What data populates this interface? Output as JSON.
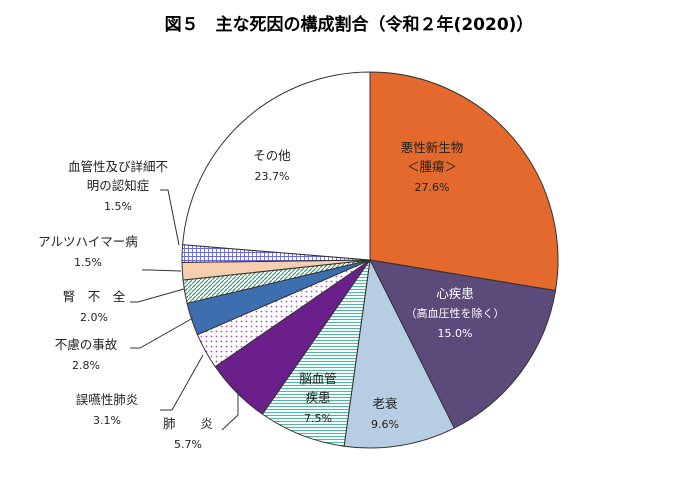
{
  "chart_data": {
    "type": "pie",
    "title": "図５　主な死因の構成割合（令和２年(2020)）",
    "unit": "%",
    "slices": [
      {
        "name": "悪性新生物<腫瘍>",
        "label_lines": [
          "悪性新生物",
          "＜腫瘍＞"
        ],
        "value": 27.6,
        "value_label": "27.6%",
        "color": "#e3692c",
        "pattern": "solid"
      },
      {
        "name": "心疾患（高血圧性を除く）",
        "label_lines": [
          "心疾患",
          "（高血圧性を除く）"
        ],
        "value": 15.0,
        "value_label": "15.0%",
        "color": "#5b4a7a",
        "pattern": "solid"
      },
      {
        "name": "老衰",
        "label_lines": [
          "老衰"
        ],
        "value": 9.6,
        "value_label": "9.6%",
        "color": "#b7cde3",
        "pattern": "solid"
      },
      {
        "name": "脳血管疾患",
        "label_lines": [
          "脳血管",
          "疾患"
        ],
        "value": 7.5,
        "value_label": "7.5%",
        "color": "#4fb7a4",
        "pattern": "hlines"
      },
      {
        "name": "肺炎",
        "label_lines": [
          "肺　　炎"
        ],
        "value": 5.7,
        "value_label": "5.7%",
        "color": "#6a1f8a",
        "pattern": "solid"
      },
      {
        "name": "誤嚥性肺炎",
        "label_lines": [
          "誤嚥性肺炎"
        ],
        "value": 3.1,
        "value_label": "3.1%",
        "color": "#a050c0",
        "pattern": "dots"
      },
      {
        "name": "不慮の事故",
        "label_lines": [
          "不慮の事故"
        ],
        "value": 2.8,
        "value_label": "2.8%",
        "color": "#3d6fb0",
        "pattern": "solid"
      },
      {
        "name": "腎不全",
        "label_lines": [
          "腎　不　全"
        ],
        "value": 2.0,
        "value_label": "2.0%",
        "color": "#38a070",
        "pattern": "diag"
      },
      {
        "name": "アルツハイマー病",
        "label_lines": [
          "アルツハイマー病"
        ],
        "value": 1.5,
        "value_label": "1.5%",
        "color": "#f7cfb0",
        "pattern": "solid"
      },
      {
        "name": "血管性及び詳細不明の認知症",
        "label_lines": [
          "血管性及び詳細不",
          "明の認知症"
        ],
        "value": 1.5,
        "value_label": "1.5%",
        "color": "#6a6ae0",
        "pattern": "grid"
      },
      {
        "name": "その他",
        "label_lines": [
          "その他"
        ],
        "value": 23.7,
        "value_label": "23.7%",
        "color": "#ffffff",
        "pattern": "solid"
      }
    ]
  }
}
